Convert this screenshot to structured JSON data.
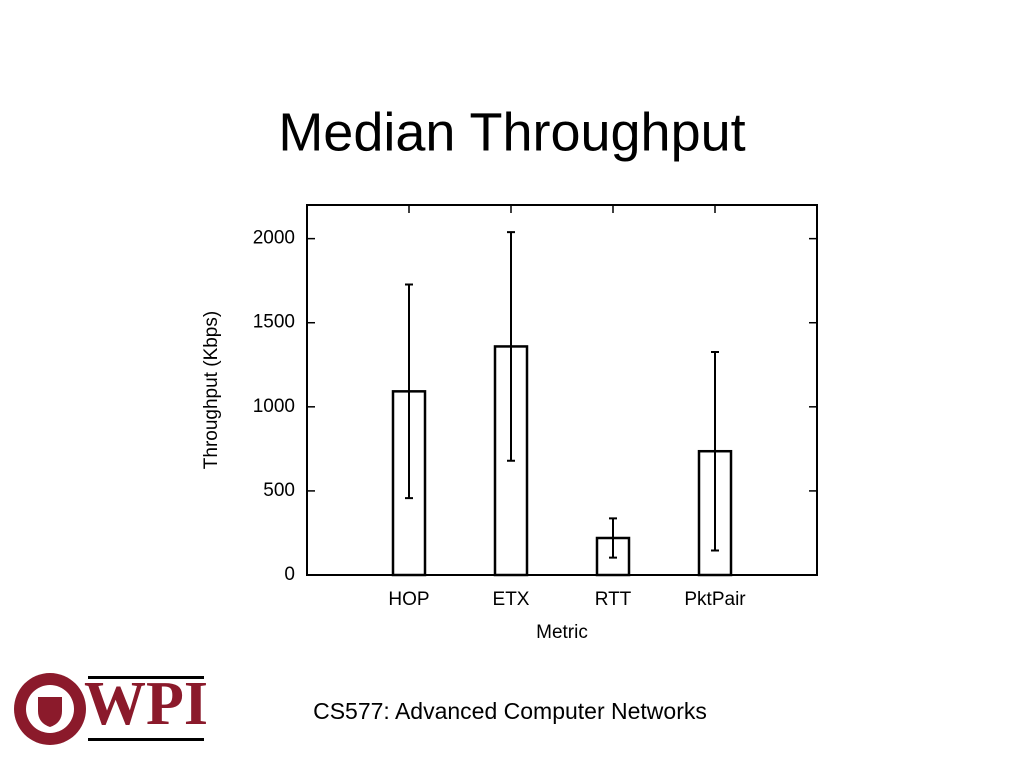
{
  "chart_data": {
    "type": "bar",
    "title": "Median Throughput",
    "categories": [
      "HOP",
      "ETX",
      "RTT",
      "PktPair"
    ],
    "values": [
      1092,
      1359,
      220,
      736
    ],
    "errors": [
      635,
      680,
      117,
      590
    ],
    "color": "#ffffff",
    "y_label": "Throughput (Kbps)",
    "x_label": "Metric",
    "ylim": [
      0,
      2200
    ],
    "yticks": [
      0,
      500,
      1000,
      1500,
      2000
    ],
    "grid": false
  },
  "footer": {
    "text": "CS577: Advanced Computer Networks",
    "logo": "WPI"
  }
}
